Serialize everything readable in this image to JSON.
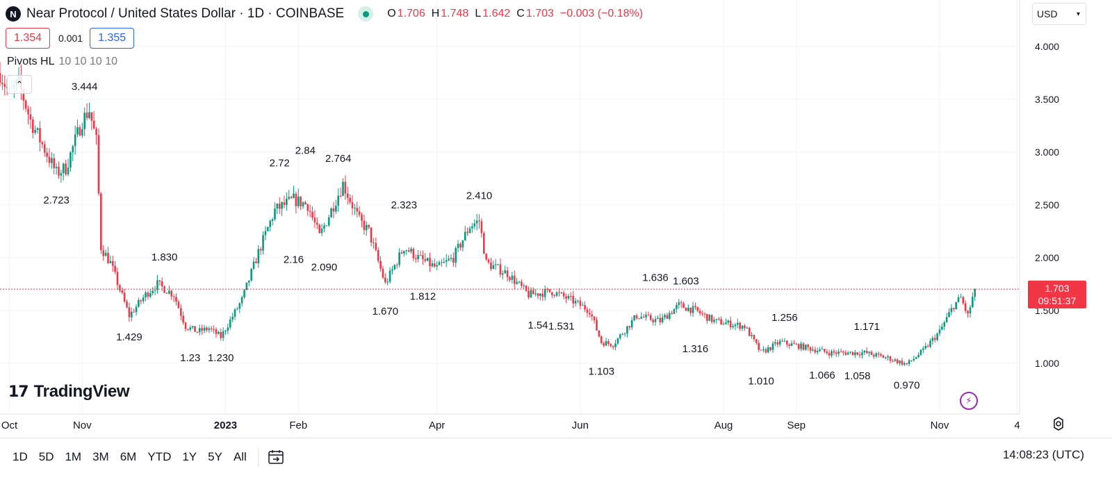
{
  "header": {
    "logo_glyph": "N",
    "title": "Near Protocol / United States Dollar · 1D · COINBASE",
    "ohlc": {
      "o_label": "O",
      "o": "1.706",
      "h_label": "H",
      "h": "1.748",
      "l_label": "L",
      "l": "1.642",
      "c_label": "C",
      "c": "1.703",
      "change": "−0.003 (−0.18%)"
    },
    "currency": "USD"
  },
  "quote": {
    "bid": "1.354",
    "spread": "0.001",
    "ask": "1.355"
  },
  "indicator": {
    "name": "Pivots HL",
    "params": "10 10 10 10"
  },
  "brand": {
    "mark": "17",
    "text": "TradingView"
  },
  "last_price": {
    "value": "1.703",
    "countdown": "09:51:37"
  },
  "toolbar": {
    "ranges": [
      "1D",
      "5D",
      "1M",
      "3M",
      "6M",
      "YTD",
      "1Y",
      "5Y",
      "All"
    ],
    "clock": "14:08:23 (UTC)"
  },
  "icons": {
    "currency_chevron": "chevron-down-icon",
    "collapse": "chevron-up-icon",
    "lightning": "lightning-icon",
    "settings": "gear-icon",
    "goto": "calendar-arrow-icon"
  },
  "colors": {
    "up": "#089981",
    "down": "#f23645",
    "ask": "#2962ff",
    "accent": "#9c27b0"
  },
  "chart_data": {
    "type": "candlestick",
    "title": "Near Protocol / United States Dollar · 1D · COINBASE",
    "y_ticks": [
      "4.000",
      "3.500",
      "3.000",
      "2.500",
      "2.000",
      "1.500",
      "1.000"
    ],
    "x_ticks": [
      "Oct",
      "Nov",
      "2023",
      "Feb",
      "Apr",
      "Jun",
      "Aug",
      "Sep",
      "Nov",
      "4"
    ],
    "ylim": [
      0.5,
      4.2
    ],
    "grid": true,
    "last_close": 1.703,
    "price_path": [
      {
        "date": "2022-09-27",
        "price": 3.75
      },
      {
        "date": "2022-10-01",
        "price": 3.55
      },
      {
        "date": "2022-10-05",
        "price": 3.65
      },
      {
        "date": "2022-10-10",
        "price": 3.3
      },
      {
        "date": "2022-10-21",
        "price": 2.8
      },
      {
        "date": "2022-10-25",
        "price": 2.85
      },
      {
        "date": "2022-11-01",
        "price": 3.3
      },
      {
        "date": "2022-11-04",
        "price": 3.4
      },
      {
        "date": "2022-11-07",
        "price": 3.1
      },
      {
        "date": "2022-11-09",
        "price": 2.1
      },
      {
        "date": "2022-11-13",
        "price": 1.95
      },
      {
        "date": "2022-11-21",
        "price": 1.45
      },
      {
        "date": "2022-11-28",
        "price": 1.65
      },
      {
        "date": "2022-12-03",
        "price": 1.75
      },
      {
        "date": "2022-12-10",
        "price": 1.65
      },
      {
        "date": "2022-12-15",
        "price": 1.35
      },
      {
        "date": "2022-12-20",
        "price": 1.3
      },
      {
        "date": "2022-12-25",
        "price": 1.33
      },
      {
        "date": "2022-12-30",
        "price": 1.25
      },
      {
        "date": "2023-01-08",
        "price": 1.6
      },
      {
        "date": "2023-01-15",
        "price": 2.05
      },
      {
        "date": "2023-01-22",
        "price": 2.45
      },
      {
        "date": "2023-01-30",
        "price": 2.55
      },
      {
        "date": "2023-02-05",
        "price": 2.5
      },
      {
        "date": "2023-02-10",
        "price": 2.2
      },
      {
        "date": "2023-02-15",
        "price": 2.45
      },
      {
        "date": "2023-02-20",
        "price": 2.7
      },
      {
        "date": "2023-02-27",
        "price": 2.35
      },
      {
        "date": "2023-03-03",
        "price": 2.25
      },
      {
        "date": "2023-03-10",
        "price": 1.75
      },
      {
        "date": "2023-03-18",
        "price": 2.1
      },
      {
        "date": "2023-03-24",
        "price": 2.0
      },
      {
        "date": "2023-04-01",
        "price": 1.9
      },
      {
        "date": "2023-04-08",
        "price": 2.0
      },
      {
        "date": "2023-04-15",
        "price": 2.3
      },
      {
        "date": "2023-04-19",
        "price": 2.35
      },
      {
        "date": "2023-04-22",
        "price": 1.95
      },
      {
        "date": "2023-05-01",
        "price": 1.85
      },
      {
        "date": "2023-05-10",
        "price": 1.65
      },
      {
        "date": "2023-05-20",
        "price": 1.68
      },
      {
        "date": "2023-05-28",
        "price": 1.6
      },
      {
        "date": "2023-06-05",
        "price": 1.5
      },
      {
        "date": "2023-06-10",
        "price": 1.2
      },
      {
        "date": "2023-06-15",
        "price": 1.18
      },
      {
        "date": "2023-06-25",
        "price": 1.45
      },
      {
        "date": "2023-07-05",
        "price": 1.4
      },
      {
        "date": "2023-07-13",
        "price": 1.55
      },
      {
        "date": "2023-07-20",
        "price": 1.5
      },
      {
        "date": "2023-07-28",
        "price": 1.4
      },
      {
        "date": "2023-08-10",
        "price": 1.35
      },
      {
        "date": "2023-08-17",
        "price": 1.1
      },
      {
        "date": "2023-08-25",
        "price": 1.2
      },
      {
        "date": "2023-09-05",
        "price": 1.15
      },
      {
        "date": "2023-09-15",
        "price": 1.1
      },
      {
        "date": "2023-09-30",
        "price": 1.1
      },
      {
        "date": "2023-10-10",
        "price": 1.05
      },
      {
        "date": "2023-10-18",
        "price": 0.99
      },
      {
        "date": "2023-10-25",
        "price": 1.12
      },
      {
        "date": "2023-11-01",
        "price": 1.3
      },
      {
        "date": "2023-11-07",
        "price": 1.55
      },
      {
        "date": "2023-11-10",
        "price": 1.62
      },
      {
        "date": "2023-11-13",
        "price": 1.45
      },
      {
        "date": "2023-11-16",
        "price": 1.703
      }
    ],
    "pivots": [
      {
        "date": "2022-11-02",
        "price": 3.444,
        "label": "3.444",
        "kind": "high"
      },
      {
        "date": "2022-10-21",
        "price": 2.723,
        "label": "2.723",
        "kind": "low"
      },
      {
        "date": "2022-12-06",
        "price": 1.83,
        "label": "1.830",
        "kind": "high"
      },
      {
        "date": "2022-11-21",
        "price": 1.429,
        "label": "1.429",
        "kind": "low"
      },
      {
        "date": "2022-12-17",
        "price": 1.23,
        "label": "1.23",
        "kind": "low"
      },
      {
        "date": "2022-12-30",
        "price": 1.23,
        "label": "1.230",
        "kind": "low"
      },
      {
        "date": "2023-01-24",
        "price": 2.72,
        "label": "2.72",
        "kind": "high"
      },
      {
        "date": "2023-02-04",
        "price": 2.84,
        "label": "2.84",
        "kind": "high"
      },
      {
        "date": "2023-02-18",
        "price": 2.764,
        "label": "2.764",
        "kind": "high"
      },
      {
        "date": "2023-01-30",
        "price": 2.16,
        "label": "2.16",
        "kind": "low"
      },
      {
        "date": "2023-02-12",
        "price": 2.09,
        "label": "2.090",
        "kind": "low"
      },
      {
        "date": "2023-03-18",
        "price": 2.323,
        "label": "2.323",
        "kind": "high"
      },
      {
        "date": "2023-03-10",
        "price": 1.67,
        "label": "1.670",
        "kind": "low"
      },
      {
        "date": "2023-03-26",
        "price": 1.812,
        "label": "1.812",
        "kind": "low"
      },
      {
        "date": "2023-04-19",
        "price": 2.41,
        "label": "2.410",
        "kind": "high"
      },
      {
        "date": "2023-05-14",
        "price": 1.54,
        "label": "1.54",
        "kind": "low"
      },
      {
        "date": "2023-05-24",
        "price": 1.531,
        "label": "1.531",
        "kind": "low"
      },
      {
        "date": "2023-06-10",
        "price": 1.103,
        "label": "1.103",
        "kind": "low"
      },
      {
        "date": "2023-07-03",
        "price": 1.636,
        "label": "1.636",
        "kind": "high"
      },
      {
        "date": "2023-07-16",
        "price": 1.603,
        "label": "1.603",
        "kind": "high"
      },
      {
        "date": "2023-07-20",
        "price": 1.316,
        "label": "1.316",
        "kind": "low"
      },
      {
        "date": "2023-08-17",
        "price": 1.01,
        "label": "1.010",
        "kind": "low"
      },
      {
        "date": "2023-08-27",
        "price": 1.256,
        "label": "1.256",
        "kind": "high"
      },
      {
        "date": "2023-09-12",
        "price": 1.066,
        "label": "1.066",
        "kind": "low"
      },
      {
        "date": "2023-09-27",
        "price": 1.058,
        "label": "1.058",
        "kind": "low"
      },
      {
        "date": "2023-10-01",
        "price": 1.171,
        "label": "1.171",
        "kind": "high"
      },
      {
        "date": "2023-10-18",
        "price": 0.97,
        "label": "0.970",
        "kind": "low"
      }
    ]
  }
}
